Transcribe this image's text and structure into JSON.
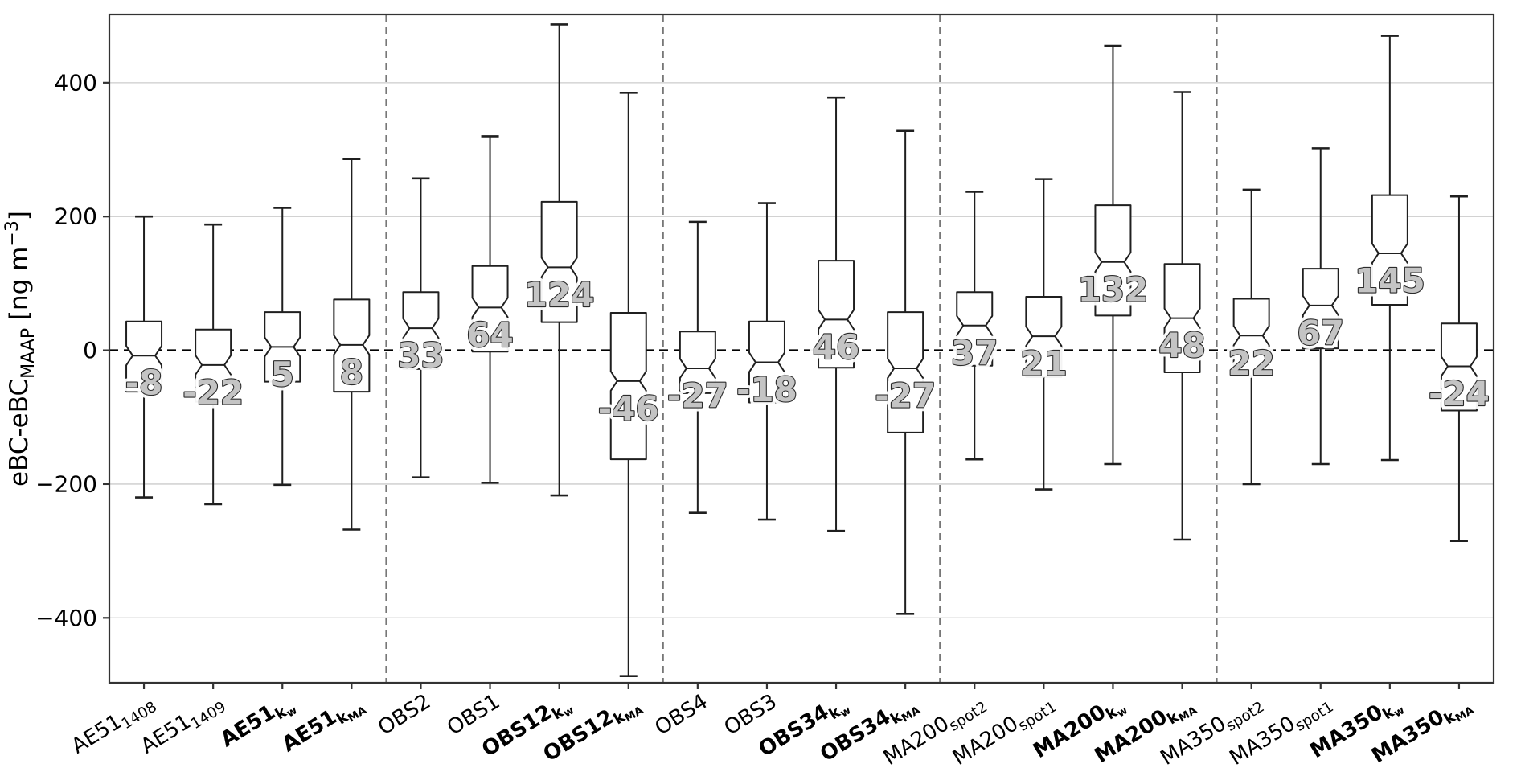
{
  "figure": {
    "background": "#ffffff",
    "description": "Notched box-whisker comparison of eBC instrument differences vs MAAP"
  },
  "chart_data": {
    "type": "boxplot",
    "title": "",
    "ylabel_parts": {
      "pre": "eBC-eBC",
      "sub": "MAAP",
      "mid": " [ng m",
      "sup": "−3",
      "post": "]"
    },
    "ylim": [
      -497,
      502
    ],
    "yticks": [
      {
        "value": 400,
        "label": "400"
      },
      {
        "value": 200,
        "label": "200"
      },
      {
        "value": 0,
        "label": "0"
      },
      {
        "value": -200,
        "label": "−200"
      },
      {
        "value": -400,
        "label": "−400"
      }
    ],
    "zero_line": {
      "shown": true,
      "value": 0
    },
    "grid": true,
    "legend": "none",
    "separators_after_index": [
      3,
      7,
      11,
      15
    ],
    "boxes": [
      {
        "label": {
          "base": "AE51",
          "sub": "1408",
          "subsub": "",
          "bold": false
        },
        "whislo": -220,
        "q1": -62,
        "med": -8,
        "q3": 43,
        "whishi": 200,
        "median_label": "-8"
      },
      {
        "label": {
          "base": "AE51",
          "sub": "1409",
          "subsub": "",
          "bold": false
        },
        "whislo": -230,
        "q1": -77,
        "med": -22,
        "q3": 31,
        "whishi": 188,
        "median_label": "-22"
      },
      {
        "label": {
          "base": "AE51",
          "sub": "k",
          "subsub": "w",
          "bold": true
        },
        "whislo": -201,
        "q1": -47,
        "med": 5,
        "q3": 57,
        "whishi": 213,
        "median_label": "5"
      },
      {
        "label": {
          "base": "AE51",
          "sub": "k",
          "subsub": "MA",
          "bold": true
        },
        "whislo": -268,
        "q1": -62,
        "med": 8,
        "q3": 76,
        "whishi": 286,
        "median_label": "8"
      },
      {
        "label": {
          "base": "OBS2",
          "sub": "",
          "subsub": "",
          "bold": false
        },
        "whislo": -190,
        "q1": -28,
        "med": 33,
        "q3": 87,
        "whishi": 257,
        "median_label": "33"
      },
      {
        "label": {
          "base": "OBS1",
          "sub": "",
          "subsub": "",
          "bold": false
        },
        "whislo": -198,
        "q1": -2,
        "med": 64,
        "q3": 126,
        "whishi": 320,
        "median_label": "64"
      },
      {
        "label": {
          "base": "OBS12",
          "sub": "k",
          "subsub": "w",
          "bold": true
        },
        "whislo": -217,
        "q1": 42,
        "med": 124,
        "q3": 222,
        "whishi": 487,
        "median_label": "124"
      },
      {
        "label": {
          "base": "OBS12",
          "sub": "k",
          "subsub": "MA",
          "bold": true
        },
        "whislo": -487,
        "q1": -163,
        "med": -46,
        "q3": 56,
        "whishi": 385,
        "median_label": "-46"
      },
      {
        "label": {
          "base": "OBS4",
          "sub": "",
          "subsub": "",
          "bold": false
        },
        "whislo": -243,
        "q1": -64,
        "med": -27,
        "q3": 28,
        "whishi": 192,
        "median_label": "-27"
      },
      {
        "label": {
          "base": "OBS3",
          "sub": "",
          "subsub": "",
          "bold": false
        },
        "whislo": -253,
        "q1": -78,
        "med": -18,
        "q3": 43,
        "whishi": 220,
        "median_label": "-18"
      },
      {
        "label": {
          "base": "OBS34",
          "sub": "k",
          "subsub": "w",
          "bold": true
        },
        "whislo": -270,
        "q1": -26,
        "med": 46,
        "q3": 134,
        "whishi": 378,
        "median_label": "46"
      },
      {
        "label": {
          "base": "OBS34",
          "sub": "k",
          "subsub": "MA",
          "bold": true
        },
        "whislo": -394,
        "q1": -123,
        "med": -27,
        "q3": 57,
        "whishi": 328,
        "median_label": "-27"
      },
      {
        "label": {
          "base": "MA200",
          "sub": "spot2",
          "subsub": "",
          "bold": false
        },
        "whislo": -163,
        "q1": -23,
        "med": 37,
        "q3": 87,
        "whishi": 237,
        "median_label": "37"
      },
      {
        "label": {
          "base": "MA200",
          "sub": "spot1",
          "subsub": "",
          "bold": false
        },
        "whislo": -208,
        "q1": -40,
        "med": 21,
        "q3": 80,
        "whishi": 256,
        "median_label": "21"
      },
      {
        "label": {
          "base": "MA200",
          "sub": "k",
          "subsub": "w",
          "bold": true
        },
        "whislo": -170,
        "q1": 52,
        "med": 132,
        "q3": 217,
        "whishi": 455,
        "median_label": "132"
      },
      {
        "label": {
          "base": "MA200",
          "sub": "k",
          "subsub": "MA",
          "bold": true
        },
        "whislo": -283,
        "q1": -33,
        "med": 48,
        "q3": 129,
        "whishi": 386,
        "median_label": "48"
      },
      {
        "label": {
          "base": "MA350",
          "sub": "spot2",
          "subsub": "",
          "bold": false
        },
        "whislo": -200,
        "q1": -38,
        "med": 22,
        "q3": 77,
        "whishi": 240,
        "median_label": "22"
      },
      {
        "label": {
          "base": "MA350",
          "sub": "spot1",
          "subsub": "",
          "bold": false
        },
        "whislo": -170,
        "q1": 3,
        "med": 67,
        "q3": 122,
        "whishi": 302,
        "median_label": "67"
      },
      {
        "label": {
          "base": "MA350",
          "sub": "k",
          "subsub": "w",
          "bold": true
        },
        "whislo": -164,
        "q1": 68,
        "med": 145,
        "q3": 232,
        "whishi": 470,
        "median_label": "145"
      },
      {
        "label": {
          "base": "MA350",
          "sub": "k",
          "subsub": "MA",
          "bold": true
        },
        "whislo": -285,
        "q1": -90,
        "med": -24,
        "q3": 40,
        "whishi": 230,
        "median_label": "-24"
      }
    ],
    "colors": {
      "box_stroke": "#1f1f1f",
      "box_fill": "#ffffff",
      "grid_line": "#cccccc",
      "separator_line": "#777777",
      "zero_line": "#000000",
      "spine": "#333333",
      "tick_text": "#000000",
      "median_label_fill": "#c4c4c4",
      "median_label_outline": "#2b2b2b",
      "median_label_halo": "#ffffff"
    }
  }
}
